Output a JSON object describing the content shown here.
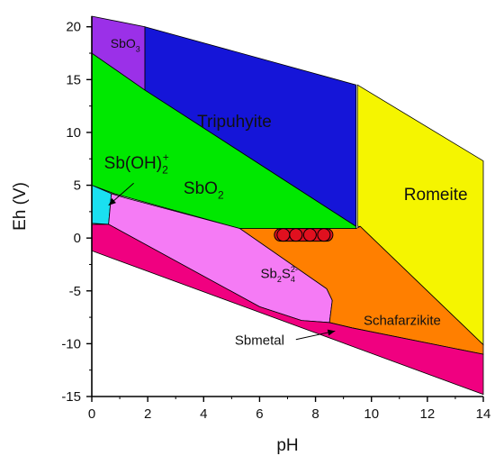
{
  "chart_data": {
    "type": "area",
    "title": "",
    "xlabel": "pH",
    "ylabel": "Eh (V)",
    "xlim": [
      0,
      14
    ],
    "ylim": [
      -15,
      21
    ],
    "xticks": [
      0,
      2,
      4,
      6,
      8,
      10,
      12,
      14
    ],
    "yticks": [
      -15,
      -10,
      -5,
      0,
      5,
      10,
      15,
      20
    ],
    "grid": false,
    "regions": [
      {
        "name": "SbO3",
        "label_main": "SbO",
        "label_sub": "3",
        "label_sup": "",
        "color": "#9b30e8",
        "polygon": [
          [
            0,
            21
          ],
          [
            1.9,
            20
          ],
          [
            1.9,
            14
          ],
          [
            0,
            17.5
          ]
        ],
        "label_at": [
          1.2,
          18
        ]
      },
      {
        "name": "Tripuhyite",
        "label_main": "Tripuhyite",
        "label_sub": "",
        "label_sup": "",
        "color": "#1515d8",
        "polygon": [
          [
            1.9,
            20
          ],
          [
            9.45,
            14.5
          ],
          [
            9.45,
            1.1
          ],
          [
            1.9,
            14
          ]
        ],
        "label_at": [
          5.1,
          10.5
        ]
      },
      {
        "name": "Romeite",
        "label_main": "Romeite",
        "label_sub": "",
        "label_sup": "",
        "color": "#f5f500",
        "polygon": [
          [
            9.5,
            14.5
          ],
          [
            14,
            7.3
          ],
          [
            14,
            -10.1
          ],
          [
            9.6,
            1.1
          ],
          [
            9.5,
            1.1
          ]
        ],
        "label_at": [
          12.3,
          3.6
        ]
      },
      {
        "name": "SbO2",
        "label_main": "SbO",
        "label_sub": "2",
        "label_sup": "",
        "color": "#00e800",
        "polygon": [
          [
            0,
            17.5
          ],
          [
            1.9,
            14
          ],
          [
            9.45,
            1.1
          ],
          [
            9.45,
            0.9
          ],
          [
            5.3,
            0.9
          ],
          [
            0.8,
            4.2
          ],
          [
            0,
            5
          ]
        ],
        "label_at": [
          4.0,
          4.2
        ]
      },
      {
        "name": "Sb(OH)2+",
        "label_main": "Sb(OH)",
        "label_sub": "2",
        "label_sup": "+",
        "color": "#1ae0f0",
        "polygon": [
          [
            0,
            5
          ],
          [
            0.7,
            4.2
          ],
          [
            0.6,
            1.3
          ],
          [
            0,
            1.4
          ]
        ],
        "label_at": [
          1.6,
          6.6
        ]
      },
      {
        "name": "Sb2S4 2-",
        "label_main": "Sb",
        "label_sub": "2",
        "label_mid": "S",
        "label_sub2": "4",
        "label_sup": "2-",
        "color": "#f57bf5",
        "polygon": [
          [
            0.7,
            4.2
          ],
          [
            1.2,
            3.8
          ],
          [
            5.3,
            0.9
          ],
          [
            8.4,
            -4.8
          ],
          [
            8.6,
            -5.9
          ],
          [
            8.5,
            -8
          ],
          [
            7.5,
            -7.8
          ],
          [
            6,
            -6.5
          ],
          [
            0.6,
            1.3
          ]
        ],
        "label_at": [
          6.7,
          -3.8
        ]
      },
      {
        "name": "Schafarzikite",
        "label_main": "Schafarzikite",
        "label_sub": "",
        "label_sup": "",
        "color": "#ff7f00",
        "polygon": [
          [
            5.3,
            0.9
          ],
          [
            9.45,
            0.9
          ],
          [
            9.6,
            1.1
          ],
          [
            14,
            -10.1
          ],
          [
            14,
            -11
          ],
          [
            9.3,
            -8.5
          ],
          [
            8.5,
            -8
          ],
          [
            8.6,
            -5.9
          ],
          [
            8.4,
            -4.8
          ]
        ],
        "label_at": [
          11.1,
          -8.2
        ]
      },
      {
        "name": "Sbmetal",
        "label_main": "Sbmetal",
        "label_sub": "",
        "label_sup": "",
        "color": "#f00080",
        "polygon": [
          [
            0,
            1.3
          ],
          [
            0.6,
            1.3
          ],
          [
            6,
            -6.5
          ],
          [
            7.5,
            -7.8
          ],
          [
            8.5,
            -8
          ],
          [
            9.3,
            -8.5
          ],
          [
            14,
            -11
          ],
          [
            14,
            -14.8
          ],
          [
            0,
            -1.2
          ]
        ],
        "label_at": [
          6.0,
          -10.1
        ]
      }
    ],
    "points": [
      {
        "x": 6.85,
        "y": 0.3
      },
      {
        "x": 7.3,
        "y": 0.3
      },
      {
        "x": 7.8,
        "y": 0.3
      },
      {
        "x": 8.3,
        "y": 0.3
      }
    ],
    "point_color": "#e0101f",
    "callouts": [
      {
        "from": [
          0.6,
          3.1
        ],
        "to": [
          1.5,
          5.2
        ]
      },
      {
        "from": [
          8.7,
          -8.8
        ],
        "to": [
          7.3,
          -9.6
        ]
      }
    ]
  }
}
